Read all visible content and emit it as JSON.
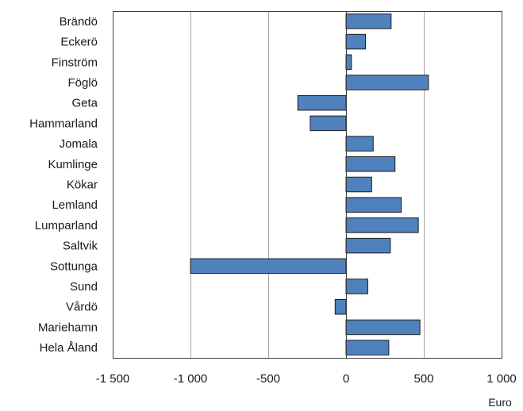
{
  "chart_data": {
    "type": "bar",
    "orientation": "horizontal",
    "categories": [
      "Brändö",
      "Eckerö",
      "Finström",
      "Föglö",
      "Geta",
      "Hammarland",
      "Jomala",
      "Kumlinge",
      "Kökar",
      "Lemland",
      "Lumparland",
      "Saltvik",
      "Sottunga",
      "Sund",
      "Vårdö",
      "Mariehamn",
      "Hela Åland"
    ],
    "values": [
      290,
      125,
      35,
      530,
      -310,
      -230,
      175,
      315,
      165,
      355,
      465,
      285,
      -1000,
      140,
      -70,
      475,
      275
    ],
    "xlim": [
      -1500,
      1000
    ],
    "xticks": [
      -1500,
      -1000,
      -500,
      0,
      500,
      1000
    ],
    "xtick_labels": [
      "-1 500",
      "-1 000",
      "-500",
      "0",
      "500",
      "1 000"
    ],
    "xlabel": "Euro",
    "title": "",
    "grid": "vertical",
    "colors": {
      "bar": "#4f81bd",
      "bar_edge": "#1f1f1f",
      "grid": "#a6a6a6",
      "frame": "#404040"
    }
  }
}
